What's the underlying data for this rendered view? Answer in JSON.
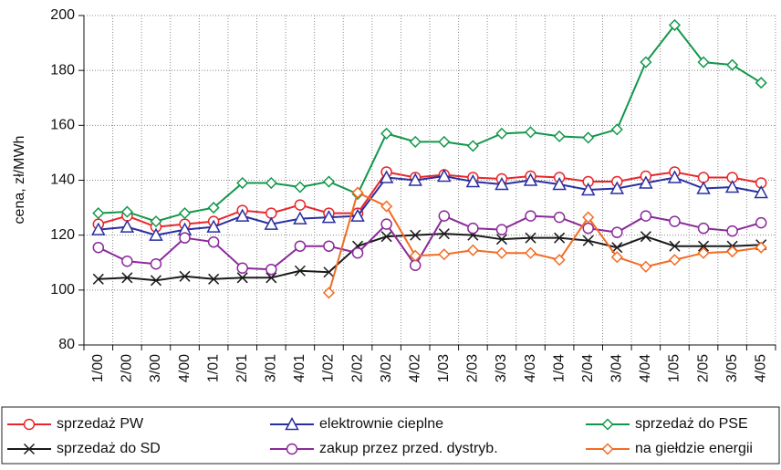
{
  "chart_data": {
    "type": "line",
    "y_label": "cena, zł/MWh",
    "categories": [
      "1/00",
      "2/00",
      "3/00",
      "4/00",
      "1/01",
      "2/01",
      "3/01",
      "4/01",
      "1/02",
      "2/02",
      "3/02",
      "4/02",
      "1/03",
      "2/03",
      "3/03",
      "4/03",
      "1/04",
      "2/04",
      "3/04",
      "4/04",
      "1/05",
      "2/05",
      "3/05",
      "4/05"
    ],
    "ylim": [
      80,
      200
    ],
    "yticks": [
      80,
      100,
      120,
      140,
      160,
      180,
      200
    ],
    "grid": true,
    "series": [
      {
        "name": "sprzedaż PW",
        "color": "#e8262a",
        "marker": "circle",
        "values": [
          124,
          127,
          123,
          124,
          125,
          129,
          128,
          131,
          128,
          128,
          143,
          141,
          142,
          141,
          140.5,
          141.5,
          141,
          139.5,
          139.5,
          141.5,
          143,
          141,
          141,
          139
        ]
      },
      {
        "name": "elektrownie cieplne",
        "color": "#2a2fa0",
        "marker": "triangle",
        "values": [
          122,
          123,
          120,
          122,
          123,
          127,
          124,
          126,
          126.5,
          127,
          141,
          140,
          141.5,
          139.5,
          138.5,
          140,
          138.5,
          136.5,
          137,
          139,
          141,
          137,
          137.5,
          135.5
        ]
      },
      {
        "name": "sprzedaż do PSE",
        "color": "#12974a",
        "marker": "diamond",
        "values": [
          128,
          128.5,
          125,
          128,
          130,
          139,
          139,
          137.5,
          139.5,
          135,
          157,
          154,
          154,
          152.5,
          157,
          157.5,
          156,
          155.5,
          158.5,
          183,
          196.5,
          183,
          182,
          175.5
        ]
      },
      {
        "name": "sprzedaż do SD",
        "color": "#1a1a1a",
        "marker": "cross",
        "values": [
          104,
          104.5,
          103.5,
          105,
          104,
          104.5,
          104.5,
          107,
          106.5,
          116,
          119.5,
          120,
          120.5,
          120,
          118.5,
          119,
          119,
          118,
          115.5,
          119.5,
          116,
          116,
          116,
          116.5
        ]
      },
      {
        "name": "zakup przez przed. dystryb.",
        "color": "#8a2a9a",
        "marker": "circle",
        "values": [
          115.5,
          110.5,
          109.5,
          119,
          117.5,
          108,
          107.5,
          116,
          116,
          113.5,
          124,
          109,
          127,
          122.5,
          122,
          127,
          126.5,
          122.5,
          121,
          127,
          125,
          122.5,
          121.5,
          124.5
        ]
      },
      {
        "name": "na giełdzie energii",
        "color": "#f26c22",
        "marker": "diamond",
        "values": [
          null,
          null,
          null,
          null,
          null,
          null,
          null,
          null,
          99,
          135.5,
          130.5,
          112.5,
          113,
          114.5,
          113.5,
          113.5,
          111,
          126.5,
          112,
          108.5,
          111,
          113.5,
          114,
          115.5
        ]
      }
    ]
  }
}
